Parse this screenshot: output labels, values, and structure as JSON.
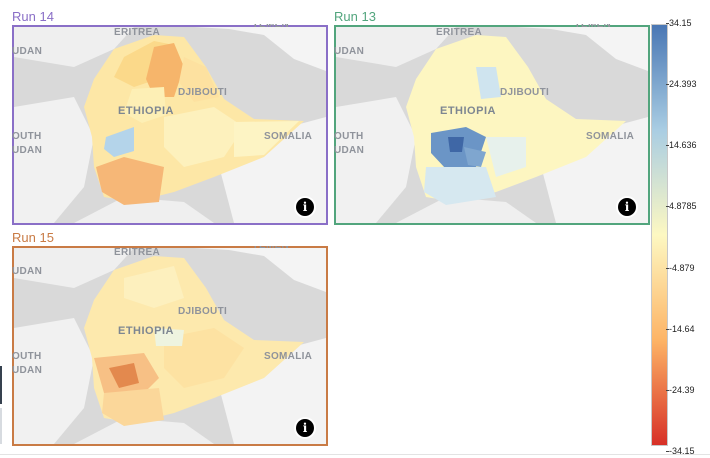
{
  "colors": {
    "run14": "#8a6fc7",
    "run13": "#52a57d",
    "run15": "#c97b45",
    "scale_high": "#4a77b4",
    "scale_mid": "#fdf8c2",
    "scale_low": "#d73027"
  },
  "labels": {
    "eritrea": "ERITREA",
    "yemen": "YEMEN",
    "djibouti": "DJIBOUTI",
    "ethiopia": "ETHIOPIA",
    "somalia": "SOMALIA",
    "sudan": "UDAN",
    "south": "OUTH",
    "south_sudan": "UDAN"
  },
  "panels": [
    {
      "id": "run14",
      "title": "Run 14",
      "info_icon": "info-icon",
      "info_glyph": "i"
    },
    {
      "id": "run13",
      "title": "Run 13",
      "info_icon": "info-icon",
      "info_glyph": "i"
    },
    {
      "id": "run15",
      "title": "Run 15",
      "info_icon": "info-icon",
      "info_glyph": "i"
    }
  ],
  "legend": {
    "ticks": [
      "34.15",
      "24.393",
      "14.636",
      "4.8785",
      "-4.879",
      "-14.64",
      "-24.39",
      "-34.15"
    ],
    "min": -34.15,
    "max": 34.15
  }
}
